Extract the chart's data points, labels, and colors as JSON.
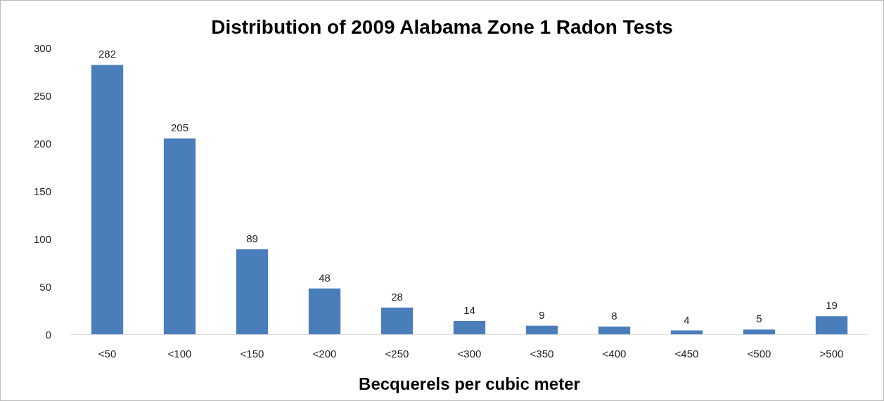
{
  "chart_data": {
    "type": "bar",
    "title": "Distribution of 2009 Alabama Zone 1 Radon Tests",
    "xlabel": "Becquerels per cubic meter",
    "categories": [
      "<50",
      "<100",
      "<150",
      "<200",
      "<250",
      "<300",
      "<350",
      "<400",
      "<450",
      "<500",
      ">500"
    ],
    "values": [
      282,
      205,
      89,
      48,
      28,
      14,
      9,
      8,
      4,
      5,
      19
    ],
    "color": "#4a7ebb",
    "ylim": [
      0,
      300
    ],
    "yticks": [
      0,
      50,
      100,
      150,
      200,
      250,
      300
    ],
    "grid": false,
    "data_labels": true
  }
}
